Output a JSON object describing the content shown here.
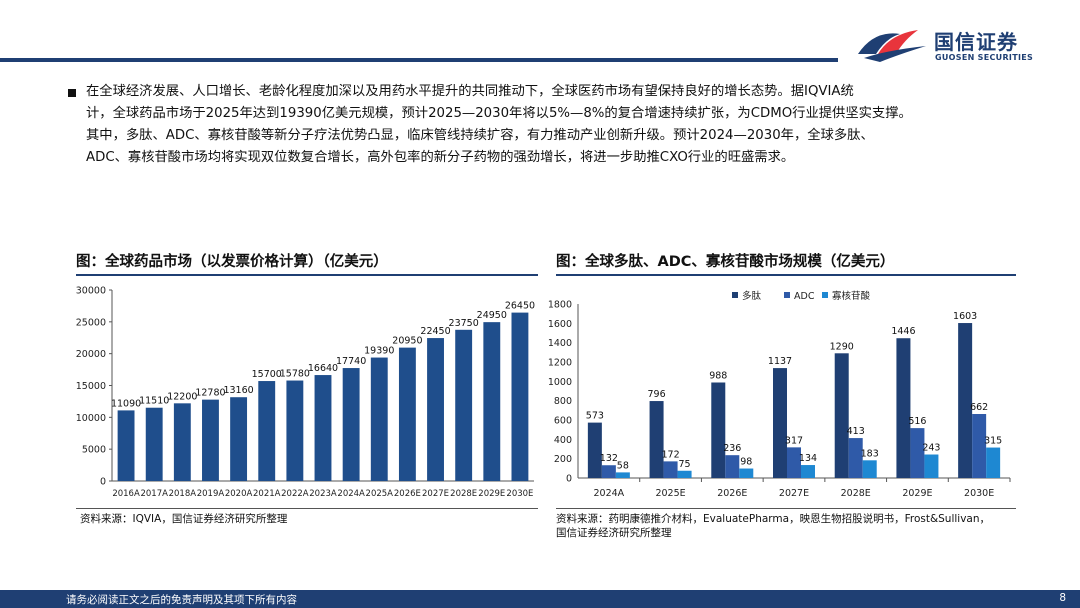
{
  "header": {
    "logo_cn": "国信证券",
    "logo_en": "GUOSEN SECURITIES",
    "brand_color": "#1f3f73",
    "accent_color": "#e8343c"
  },
  "body_text": "在全球经济发展、人口增长、老龄化程度加深以及用药水平提升的共同推动下，全球医药市场有望保持良好的增长态势。据IQVIA统\n计，全球药品市场于2025年达到19390亿美元规模，预计2025—2030年将以5%—8%的复合增速持续扩张，为CDMO行业提供坚实支撑。\n其中，多肽、ADC、寡核苷酸等新分子疗法优势凸显，临床管线持续扩容，有力推动产业创新升级。预计2024—2030年，全球多肽、\nADC、寡核苷酸市场均将实现双位数复合增长，高外包率的新分子药物的强劲增长，将进一步助推CXO行业的旺盛需求。",
  "chart_left": {
    "title": "图：全球药品市场（以发票价格计算）（亿美元）",
    "source": "资料来源：IQVIA，国信证券经济研究所整理"
  },
  "chart_right": {
    "title": "图：全球多肽、ADC、寡核苷酸市场规模（亿美元）",
    "source": "资料来源：药明康德推介材料，EvaluatePharma，映恩生物招股说明书，Frost&Sullivan，\n国信证券经济研究所整理"
  },
  "chart_data": [
    {
      "type": "bar",
      "title": "图：全球药品市场（以发票价格计算）（亿美元）",
      "categories": [
        "2016A",
        "2017A",
        "2018A",
        "2019A",
        "2020A",
        "2021A",
        "2022A",
        "2023A",
        "2024A",
        "2025A",
        "2026E",
        "2027E",
        "2028E",
        "2029E",
        "2030E"
      ],
      "values": [
        11090,
        11510,
        12200,
        12780,
        13160,
        15700,
        15780,
        16640,
        17740,
        19390,
        20950,
        22450,
        23750,
        24950,
        26450
      ],
      "value_labels": [
        "11090",
        "11510",
        "12200",
        "12780",
        "13160",
        "15700",
        "15780",
        "16640",
        "17740",
        "19390",
        "20950",
        "22450",
        "23750",
        "24950",
        "26450"
      ],
      "yticks": [
        "0",
        "5000",
        "10000",
        "15000",
        "20000",
        "25000",
        "30000"
      ],
      "ylim": [
        0,
        30000
      ],
      "grid": false,
      "color": "#1f4e8c"
    },
    {
      "type": "bar",
      "title": "图：全球多肽、ADC、寡核苷酸市场规模（亿美元）",
      "categories": [
        "2024A",
        "2025E",
        "2026E",
        "2027E",
        "2028E",
        "2029E",
        "2030E"
      ],
      "series": [
        {
          "name": "多肽",
          "values": [
            573,
            796,
            988,
            1137,
            1290,
            1446,
            1603
          ],
          "labels": [
            "573",
            "796",
            "988",
            "1137",
            "1290",
            "1446",
            "1603"
          ],
          "color": "#1f3f73"
        },
        {
          "name": "ADC",
          "values": [
            132,
            172,
            236,
            317,
            413,
            516,
            662
          ],
          "labels": [
            "132",
            "172",
            "236",
            "317",
            "413",
            "516",
            "662"
          ],
          "color": "#2f5aa8"
        },
        {
          "name": "寡核苷酸",
          "values": [
            58,
            75,
            98,
            134,
            183,
            243,
            315
          ],
          "labels": [
            "58",
            "75",
            "98",
            "134",
            "183",
            "243",
            "315"
          ],
          "color": "#1e88d2"
        }
      ],
      "yticks": [
        "0",
        "200",
        "400",
        "600",
        "800",
        "1000",
        "1200",
        "1400",
        "1600",
        "1800"
      ],
      "ylim": [
        0,
        1800
      ],
      "legend_position": "top",
      "grid": false
    }
  ],
  "footer": {
    "disclaimer": "请务必阅读正文之后的免责声明及其项下所有内容",
    "page_number": "8"
  }
}
